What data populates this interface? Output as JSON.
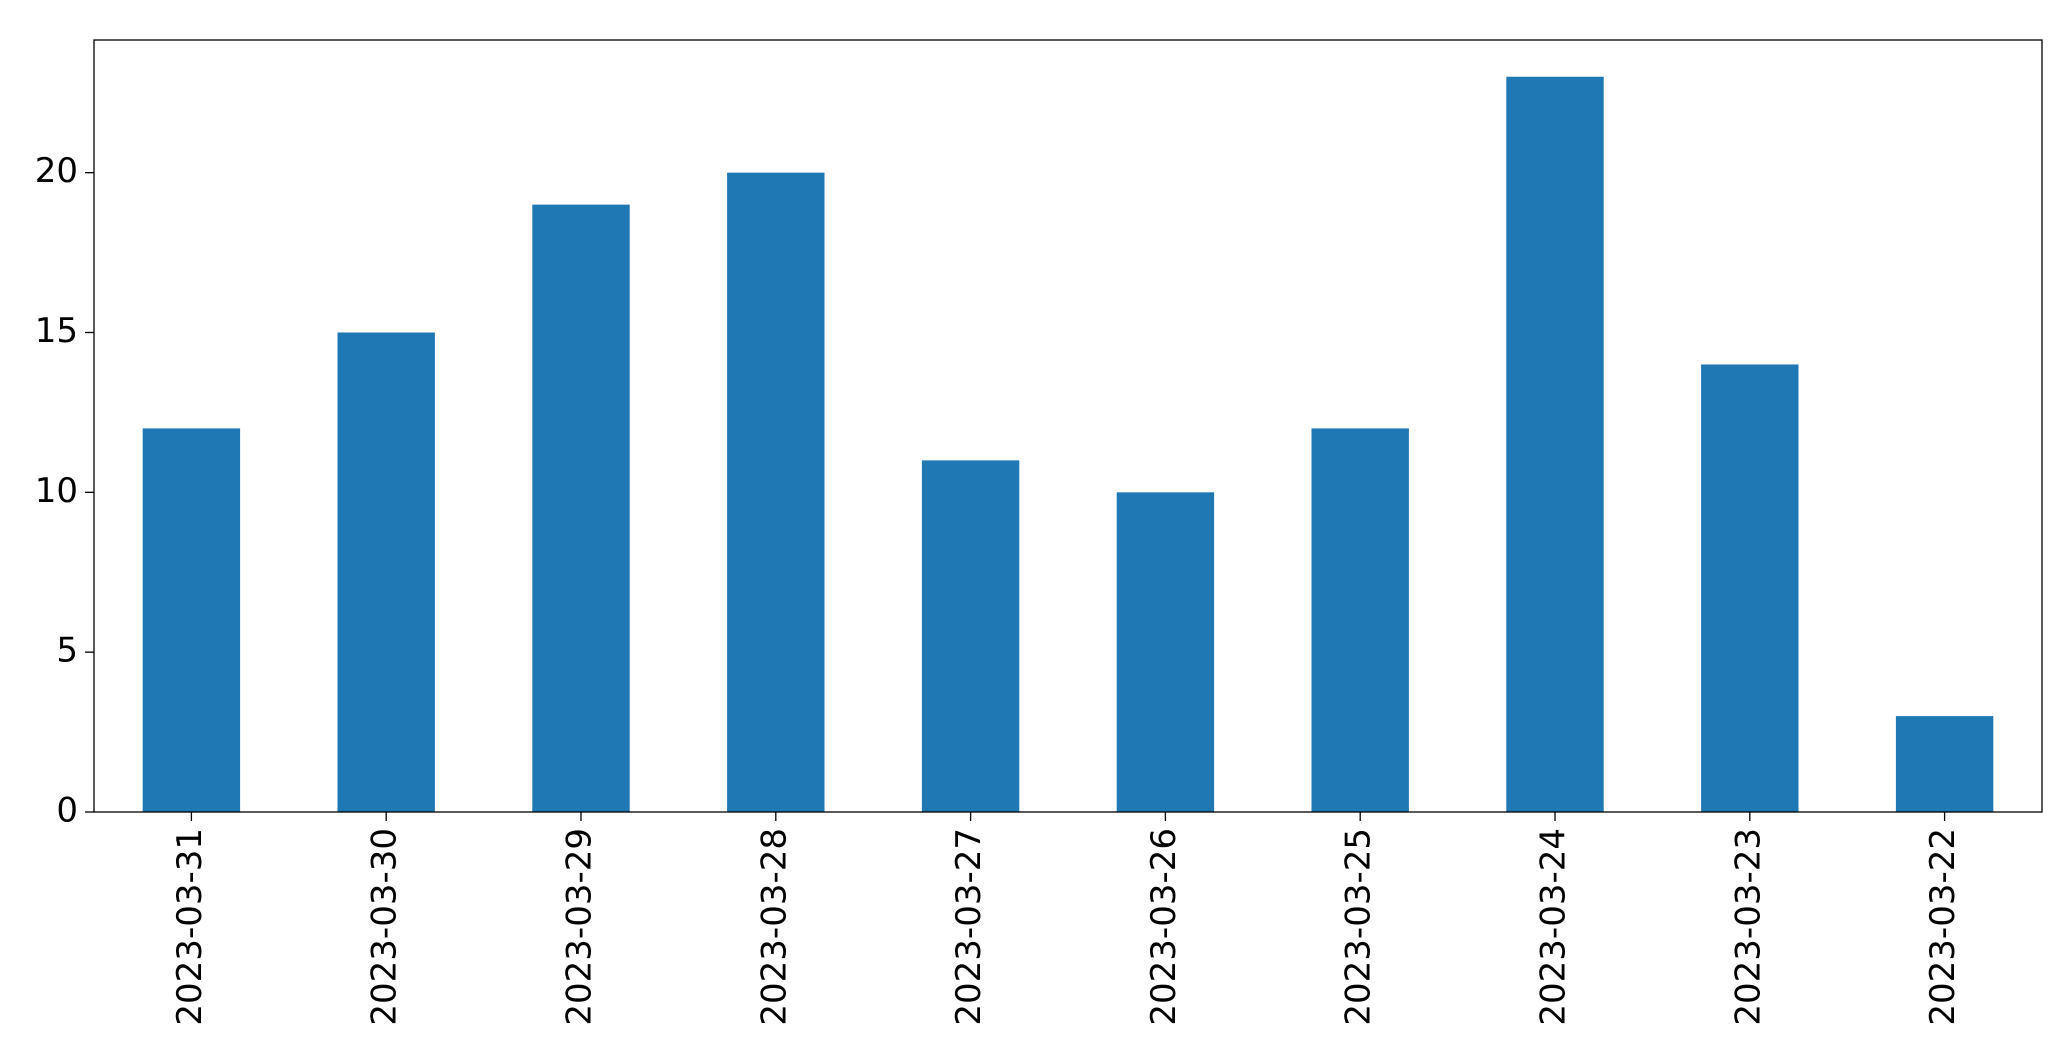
{
  "chart_data": {
    "type": "bar",
    "categories": [
      "2023-03-31",
      "2023-03-30",
      "2023-03-29",
      "2023-03-28",
      "2023-03-27",
      "2023-03-26",
      "2023-03-25",
      "2023-03-24",
      "2023-03-23",
      "2023-03-22"
    ],
    "values": [
      12,
      15,
      19,
      20,
      11,
      10,
      12,
      23,
      14,
      3
    ],
    "color": "#1f77b4",
    "ylim": [
      0,
      24.15
    ],
    "yticks": [
      0,
      5,
      10,
      15,
      20
    ],
    "grid": false
  }
}
